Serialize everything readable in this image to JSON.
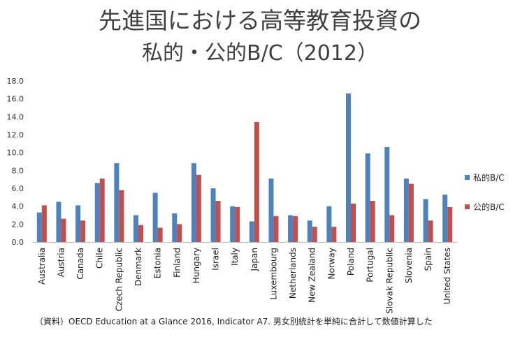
{
  "chart_data": {
    "type": "bar",
    "title": "先進国における高等教育投資の",
    "subtitle": "私的・公的B/C（2012）",
    "categories": [
      "Australia",
      "Austria",
      "Canada",
      "Chile",
      "Czech Republic",
      "Denmark",
      "Estonia",
      "Finland",
      "Hungary",
      "Israel",
      "Italy",
      "Japan",
      "Luxembourg",
      "Netherlands",
      "New Zealand",
      "Norway",
      "Poland",
      "Portugal",
      "Slovak Republic",
      "Slovenia",
      "Spain",
      "United States"
    ],
    "series": [
      {
        "name": "私的B/C",
        "color": "#4F81BD",
        "values": [
          3.3,
          4.5,
          4.1,
          6.6,
          8.8,
          3.0,
          5.5,
          3.2,
          8.8,
          6.0,
          4.0,
          2.3,
          7.1,
          3.0,
          2.4,
          4.0,
          16.6,
          9.9,
          10.6,
          7.1,
          4.8,
          5.3
        ]
      },
      {
        "name": "公的B/C",
        "color": "#C0504D",
        "values": [
          4.1,
          2.6,
          2.4,
          7.1,
          5.8,
          1.9,
          1.6,
          2.0,
          7.5,
          4.6,
          3.9,
          13.4,
          2.9,
          2.9,
          1.7,
          1.7,
          4.3,
          4.6,
          3.0,
          6.5,
          2.4,
          3.9
        ]
      }
    ],
    "yticks": [
      "0.0",
      "2.0",
      "4.0",
      "6.0",
      "8.0",
      "10.0",
      "12.0",
      "14.0",
      "16.0",
      "18.0"
    ],
    "ylim": [
      0,
      18
    ],
    "legend_position": "right",
    "grid": false
  },
  "source_note": "（資料）OECD Education at a Glance 2016, Indicator A7. 男女別統計を単純に合計して数値計算した"
}
